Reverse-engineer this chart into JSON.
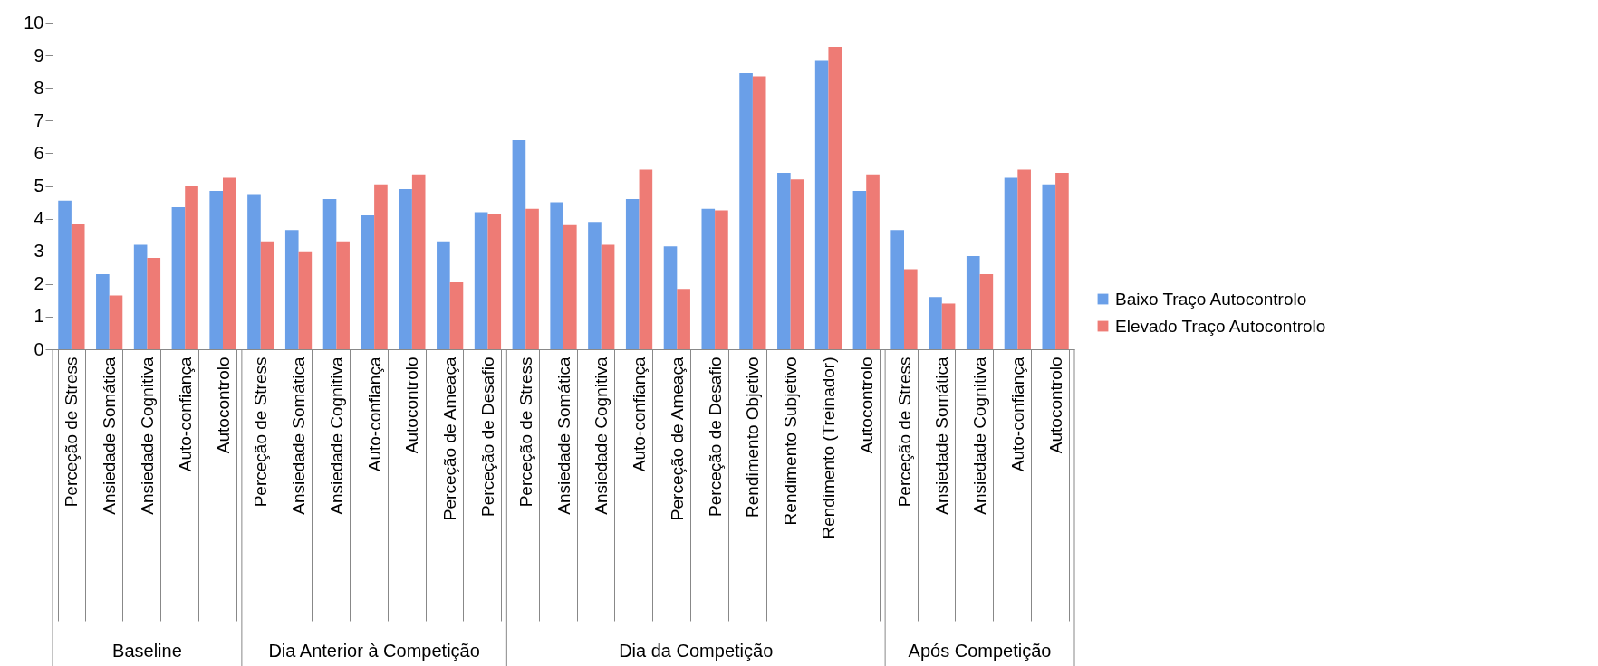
{
  "chart_data": {
    "type": "bar",
    "categories": [
      "Perceção de Stress",
      "Ansiedade Somática",
      "Ansiedade Cognitiva",
      "Auto-confiança",
      "Autocontrolo",
      "Perceção de Stress",
      "Ansiedade Somática",
      "Ansiedade Cognitiva",
      "Auto-confiança",
      "Autocontrolo",
      "Perceção de Ameaça",
      "Perceção de Desafio",
      "Perceção de Stress",
      "Ansiedade Somática",
      "Ansiedade Cognitiva",
      "Auto-confiança",
      "Perceção de Ameaça",
      "Perceção de Desafio",
      "Rendimento Objetivo",
      "Rendimento Subjetivo",
      "Rendimento (Treinador)",
      "Autocontrolo",
      "Perceção de Stress",
      "Ansiedade Somática",
      "Ansiedade Cognitiva",
      "Auto-confiança",
      "Autocontrolo"
    ],
    "annotations": [
      "Baseline",
      "Dia Anterior à Competição",
      "Dia da Competição",
      "Após Competição"
    ],
    "series": [
      {
        "name": "Baixo Traço Autocontrolo",
        "color": "#6a9fe8",
        "values": [
          4.55,
          2.3,
          3.2,
          4.35,
          4.85,
          4.75,
          3.65,
          4.6,
          4.1,
          4.9,
          3.3,
          4.2,
          6.4,
          4.5,
          3.9,
          4.6,
          3.15,
          4.3,
          8.45,
          5.4,
          8.85,
          4.85,
          3.65,
          1.6,
          2.85,
          5.25,
          5.05
        ]
      },
      {
        "name": "Elevado Traço Autocontrolo",
        "color": "#ee7b75",
        "values": [
          3.85,
          1.65,
          2.8,
          5.0,
          5.25,
          3.3,
          3.0,
          3.3,
          5.05,
          5.35,
          2.05,
          4.15,
          4.3,
          3.8,
          3.2,
          5.5,
          1.85,
          4.25,
          8.35,
          5.2,
          9.25,
          5.35,
          2.45,
          1.4,
          2.3,
          5.5,
          5.4
        ]
      }
    ],
    "ylim": [
      0,
      10
    ],
    "yticks": [
      0,
      1,
      2,
      3,
      4,
      5,
      6,
      7,
      8,
      9,
      10
    ],
    "grid": false,
    "legend": "right"
  }
}
